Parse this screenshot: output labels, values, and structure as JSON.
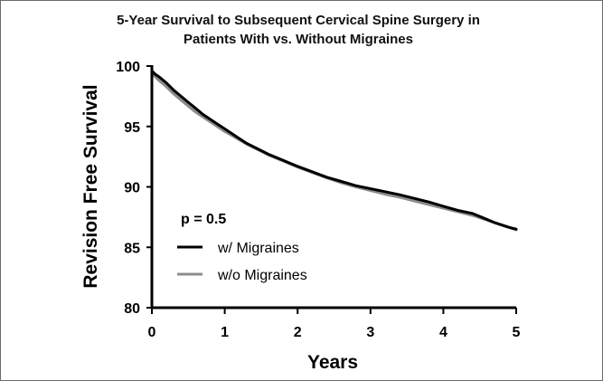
{
  "chart_data": {
    "type": "line",
    "title_line1": "5-Year Survival to Subsequent Cervical Spine Surgery in",
    "title_line2": "Patients With vs. Without Migraines",
    "xlabel": "Years",
    "ylabel": "Revision Free Survival",
    "xlim": [
      0,
      5
    ],
    "ylim": [
      80,
      100
    ],
    "xticks": [
      "0",
      "1",
      "2",
      "3",
      "4",
      "5"
    ],
    "yticks": [
      "80",
      "85",
      "90",
      "95",
      "100"
    ],
    "grid": false,
    "annotation": "p = 0.5",
    "legend_position": "lower-left",
    "series": [
      {
        "name": "w/ Migraines",
        "color": "#000000",
        "x": [
          0,
          0.05,
          0.1,
          0.2,
          0.3,
          0.4,
          0.5,
          0.6,
          0.7,
          0.8,
          0.9,
          1.0,
          1.1,
          1.2,
          1.3,
          1.4,
          1.5,
          1.6,
          1.7,
          1.8,
          1.9,
          2.0,
          2.2,
          2.4,
          2.6,
          2.8,
          3.0,
          3.2,
          3.4,
          3.6,
          3.8,
          4.0,
          4.2,
          4.4,
          4.5,
          4.6,
          4.7,
          4.8,
          4.9,
          5.0
        ],
        "y": [
          99.6,
          99.3,
          99.1,
          98.6,
          98.0,
          97.5,
          97.0,
          96.5,
          96.0,
          95.6,
          95.2,
          94.8,
          94.4,
          94.0,
          93.6,
          93.3,
          93.0,
          92.7,
          92.45,
          92.2,
          91.95,
          91.7,
          91.25,
          90.8,
          90.45,
          90.1,
          89.85,
          89.6,
          89.35,
          89.05,
          88.75,
          88.4,
          88.05,
          87.8,
          87.55,
          87.3,
          87.05,
          86.85,
          86.65,
          86.5
        ]
      },
      {
        "name": "w/o Migraines",
        "color": "#8c8c8c",
        "x": [
          0,
          0.05,
          0.1,
          0.2,
          0.3,
          0.4,
          0.5,
          0.6,
          0.7,
          0.8,
          0.9,
          1.0,
          1.1,
          1.2,
          1.3,
          1.4,
          1.5,
          1.6,
          1.7,
          1.8,
          1.9,
          2.0,
          2.2,
          2.4,
          2.6,
          2.8,
          3.0,
          3.2,
          3.4,
          3.6,
          3.8,
          4.0,
          4.2,
          4.4,
          4.5,
          4.6,
          4.7,
          4.8,
          4.9,
          5.0
        ],
        "y": [
          99.4,
          99.1,
          98.8,
          98.3,
          97.7,
          97.2,
          96.7,
          96.2,
          95.8,
          95.4,
          95.0,
          94.6,
          94.25,
          93.9,
          93.55,
          93.25,
          92.95,
          92.65,
          92.4,
          92.15,
          91.9,
          91.65,
          91.2,
          90.75,
          90.35,
          90.0,
          89.7,
          89.4,
          89.15,
          88.85,
          88.55,
          88.25,
          87.95,
          87.65,
          87.45,
          87.25,
          87.05,
          86.85,
          86.65,
          86.45
        ]
      }
    ]
  }
}
